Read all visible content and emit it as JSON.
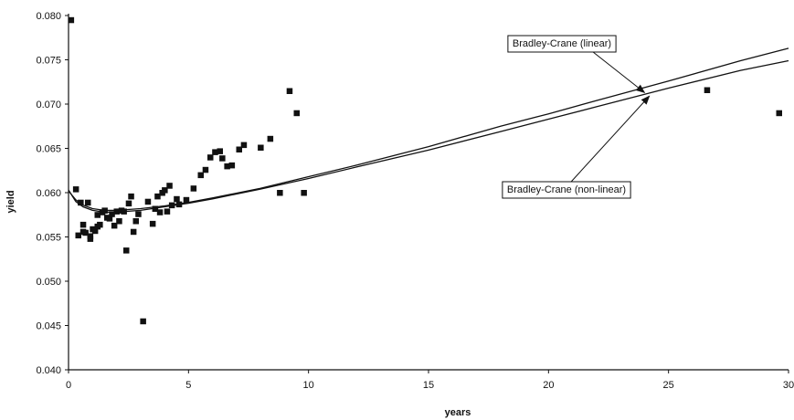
{
  "chart_data": {
    "type": "scatter",
    "xlabel": "years",
    "ylabel": "yield",
    "xlim": [
      0,
      30
    ],
    "ylim": [
      0.04,
      0.08
    ],
    "xticks": [
      0,
      5,
      10,
      15,
      20,
      25,
      30
    ],
    "xtick_labels": [
      "0",
      "5",
      "10",
      "15",
      "20",
      "25",
      "30"
    ],
    "yticks": [
      0.04,
      0.045,
      0.05,
      0.055,
      0.06,
      0.065,
      0.07,
      0.075,
      0.08
    ],
    "ytick_labels": [
      "0.040",
      "0.045",
      "0.050",
      "0.055",
      "0.060",
      "0.065",
      "0.070",
      "0.075",
      "0.080"
    ],
    "grid": false,
    "series": [
      {
        "kind": "scatter",
        "marker": "square",
        "color": "#111111",
        "x": [
          0.1,
          0.3,
          0.4,
          0.5,
          0.6,
          0.6,
          0.7,
          0.8,
          0.9,
          0.9,
          1.0,
          1.1,
          1.2,
          1.2,
          1.3,
          1.4,
          1.5,
          1.6,
          1.7,
          1.8,
          1.9,
          2.0,
          2.1,
          2.2,
          2.3,
          2.4,
          2.5,
          2.6,
          2.7,
          2.8,
          2.9,
          3.1,
          3.3,
          3.5,
          3.6,
          3.7,
          3.8,
          3.9,
          4.0,
          4.1,
          4.2,
          4.3,
          4.5,
          4.6,
          4.9,
          5.2,
          5.5,
          5.7,
          5.9,
          6.1,
          6.3,
          6.4,
          6.6,
          6.8,
          7.1,
          7.3,
          8.0,
          8.4,
          8.8,
          9.2,
          9.5,
          9.8,
          26.6,
          29.6
        ],
        "y": [
          0.0795,
          0.0604,
          0.0552,
          0.0589,
          0.0564,
          0.0556,
          0.0555,
          0.0589,
          0.0551,
          0.0548,
          0.0559,
          0.0557,
          0.0575,
          0.0562,
          0.0564,
          0.0578,
          0.058,
          0.0572,
          0.0571,
          0.0576,
          0.0563,
          0.0579,
          0.0568,
          0.058,
          0.0579,
          0.0535,
          0.0588,
          0.0596,
          0.0556,
          0.0568,
          0.0576,
          0.0455,
          0.059,
          0.0565,
          0.0582,
          0.0596,
          0.0578,
          0.06,
          0.0603,
          0.0579,
          0.0608,
          0.0586,
          0.0593,
          0.0587,
          0.0592,
          0.0605,
          0.062,
          0.0626,
          0.064,
          0.0646,
          0.0647,
          0.0639,
          0.063,
          0.0631,
          0.0649,
          0.0654,
          0.0651,
          0.0661,
          0.06,
          0.0715,
          0.069,
          0.06,
          0.0716,
          0.069
        ]
      },
      {
        "kind": "line",
        "name": "Bradley-Crane (linear)",
        "color": "#111111",
        "x": [
          0,
          0.3,
          0.6,
          1,
          1.5,
          2,
          3,
          4,
          5,
          6,
          8,
          10,
          12,
          15,
          18,
          20,
          22,
          25,
          28,
          30
        ],
        "y": [
          0.0602,
          0.0592,
          0.0586,
          0.0582,
          0.058,
          0.058,
          0.0582,
          0.0585,
          0.0589,
          0.0594,
          0.0605,
          0.0618,
          0.0631,
          0.0652,
          0.0675,
          0.0689,
          0.0704,
          0.0726,
          0.0749,
          0.0763
        ]
      },
      {
        "kind": "line",
        "name": "Bradley-Crane (non-linear)",
        "color": "#111111",
        "x": [
          0,
          0.3,
          0.6,
          1,
          1.5,
          2,
          3,
          4,
          5,
          6,
          8,
          10,
          12,
          15,
          18,
          20,
          22,
          25,
          28,
          30
        ],
        "y": [
          0.0603,
          0.059,
          0.0584,
          0.058,
          0.0578,
          0.0578,
          0.058,
          0.0584,
          0.0588,
          0.0593,
          0.0604,
          0.0616,
          0.0629,
          0.0648,
          0.0669,
          0.0683,
          0.0697,
          0.0718,
          0.0738,
          0.0749
        ]
      }
    ],
    "annotations": [
      {
        "text": "Bradley-Crane (linear)",
        "target": [
          24.0,
          0.0713
        ]
      },
      {
        "text": "Bradley-Crane (non-linear)",
        "target": [
          24.2,
          0.0709
        ]
      }
    ]
  }
}
